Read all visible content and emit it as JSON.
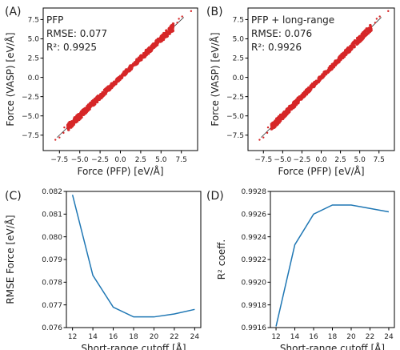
{
  "panels": [
    {
      "type": "scatter",
      "panel_label": "(A)",
      "xlabel": "Force (PFP) [eV/Å]",
      "ylabel": "Force (VASP) [eV/Å]",
      "xlim": [
        -9.5,
        9.5
      ],
      "ylim": [
        -9.5,
        9.0
      ],
      "xticks": [
        -7.5,
        -5.0,
        -2.5,
        0.0,
        2.5,
        5.0,
        7.5
      ],
      "yticks": [
        -7.5,
        -5.0,
        -2.5,
        0.0,
        2.5,
        5.0,
        7.5
      ],
      "xtick_labels": [
        "−7.5",
        "−5.0",
        "−2.5",
        "0.0",
        "2.5",
        "5.0",
        "7.5"
      ],
      "ytick_labels": [
        "−7.5",
        "−5.0",
        "−2.5",
        "0.0",
        "2.5",
        "5.0",
        "7.5"
      ],
      "annotation_lines": [
        "PFP",
        "RMSE: 0.077",
        "R²: 0.9925"
      ],
      "diagonal": [
        -7.8,
        7.8
      ],
      "dense_range": [
        -6.5,
        6.5
      ],
      "dense_points": [
        [
          -6.4,
          -6.3
        ],
        [
          -5.8,
          -5.9
        ],
        [
          -5.0,
          -5.1
        ],
        [
          -4.5,
          -4.4
        ],
        [
          -3.5,
          -3.6
        ],
        [
          -2.5,
          -2.5
        ],
        [
          -1.5,
          -1.4
        ],
        [
          0.0,
          0.1
        ],
        [
          1.5,
          1.5
        ],
        [
          2.5,
          2.4
        ],
        [
          3.5,
          3.6
        ],
        [
          4.5,
          4.5
        ],
        [
          5.0,
          5.1
        ],
        [
          5.8,
          5.9
        ],
        [
          6.4,
          6.3
        ]
      ],
      "outliers": [
        [
          -8.0,
          -8.1
        ],
        [
          -7.5,
          -7.8
        ],
        [
          -7.0,
          -7.2
        ],
        [
          -6.9,
          -6.5
        ],
        [
          7.0,
          7.1
        ],
        [
          7.2,
          7.6
        ],
        [
          7.6,
          7.9
        ],
        [
          8.7,
          8.6
        ]
      ],
      "point_color": "#d62728"
    },
    {
      "type": "scatter",
      "panel_label": "(B)",
      "xlabel": "Force (PFP) [eV/Å]",
      "ylabel": "Force (VASP) [eV/Å]",
      "xlim": [
        -9.5,
        9.5
      ],
      "ylim": [
        -9.5,
        9.0
      ],
      "xticks": [
        -7.5,
        -5.0,
        -2.5,
        0.0,
        2.5,
        5.0,
        7.5
      ],
      "yticks": [
        -7.5,
        -5.0,
        -2.5,
        0.0,
        2.5,
        5.0,
        7.5
      ],
      "xtick_labels": [
        "−7.5",
        "−5.0",
        "−2.5",
        "0.0",
        "2.5",
        "5.0",
        "7.5"
      ],
      "ytick_labels": [
        "−7.5",
        "−5.0",
        "−2.5",
        "0.0",
        "2.5",
        "5.0",
        "7.5"
      ],
      "annotation_lines": [
        "PFP + long-range",
        "RMSE: 0.076",
        "R²: 0.9926"
      ],
      "diagonal": [
        -7.8,
        7.8
      ],
      "dense_range": [
        -6.5,
        6.5
      ],
      "dense_points": [
        [
          -6.4,
          -6.3
        ],
        [
          -5.8,
          -5.9
        ],
        [
          -5.0,
          -5.1
        ],
        [
          -4.5,
          -4.4
        ],
        [
          -3.5,
          -3.6
        ],
        [
          -2.5,
          -2.5
        ],
        [
          -1.5,
          -1.4
        ],
        [
          0.0,
          0.1
        ],
        [
          1.5,
          1.5
        ],
        [
          2.5,
          2.4
        ],
        [
          3.5,
          3.6
        ],
        [
          4.5,
          4.5
        ],
        [
          5.0,
          5.1
        ],
        [
          5.8,
          5.9
        ],
        [
          6.4,
          6.3
        ]
      ],
      "outliers": [
        [
          -8.0,
          -8.1
        ],
        [
          -7.5,
          -7.8
        ],
        [
          -7.0,
          -7.2
        ],
        [
          -6.9,
          -6.5
        ],
        [
          7.0,
          7.1
        ],
        [
          7.2,
          7.6
        ],
        [
          7.6,
          7.9
        ],
        [
          8.7,
          8.6
        ]
      ],
      "point_color": "#d62728"
    },
    {
      "type": "line",
      "panel_label": "(C)",
      "xlabel": "Short-range cutoff [Å]",
      "ylabel": "RMSE Force [eV/Å]",
      "xlim": [
        11.4,
        24.6
      ],
      "ylim": [
        0.076,
        0.082
      ],
      "xticks": [
        12,
        14,
        16,
        18,
        20,
        22,
        24
      ],
      "yticks": [
        0.076,
        0.077,
        0.078,
        0.079,
        0.08,
        0.081,
        0.082
      ],
      "xtick_labels": [
        "12",
        "14",
        "16",
        "18",
        "20",
        "22",
        "24"
      ],
      "ytick_labels": [
        "0.076",
        "0.077",
        "0.078",
        "0.079",
        "0.080",
        "0.081",
        "0.082"
      ],
      "x": [
        12,
        14,
        16,
        18,
        20,
        22,
        24
      ],
      "y": [
        0.08185,
        0.0783,
        0.0769,
        0.07647,
        0.07647,
        0.0766,
        0.0768
      ],
      "line_color": "#1f77b4"
    },
    {
      "type": "line",
      "panel_label": "(D)",
      "xlabel": "Short-range cutoff [Å]",
      "ylabel": "R² coeff.",
      "xlim": [
        11.4,
        24.6
      ],
      "ylim": [
        0.9916,
        0.9928
      ],
      "xticks": [
        12,
        14,
        16,
        18,
        20,
        22,
        24
      ],
      "yticks": [
        0.9916,
        0.9918,
        0.992,
        0.9922,
        0.9924,
        0.9926,
        0.9928
      ],
      "xtick_labels": [
        "12",
        "14",
        "16",
        "18",
        "20",
        "22",
        "24"
      ],
      "ytick_labels": [
        "0.9916",
        "0.9918",
        "0.9920",
        "0.9922",
        "0.9924",
        "0.9926",
        "0.9928"
      ],
      "x": [
        12,
        14,
        16,
        18,
        20,
        22,
        24
      ],
      "y": [
        0.99161,
        0.99233,
        0.9926,
        0.99268,
        0.99268,
        0.99265,
        0.99262
      ],
      "line_color": "#1f77b4"
    }
  ]
}
